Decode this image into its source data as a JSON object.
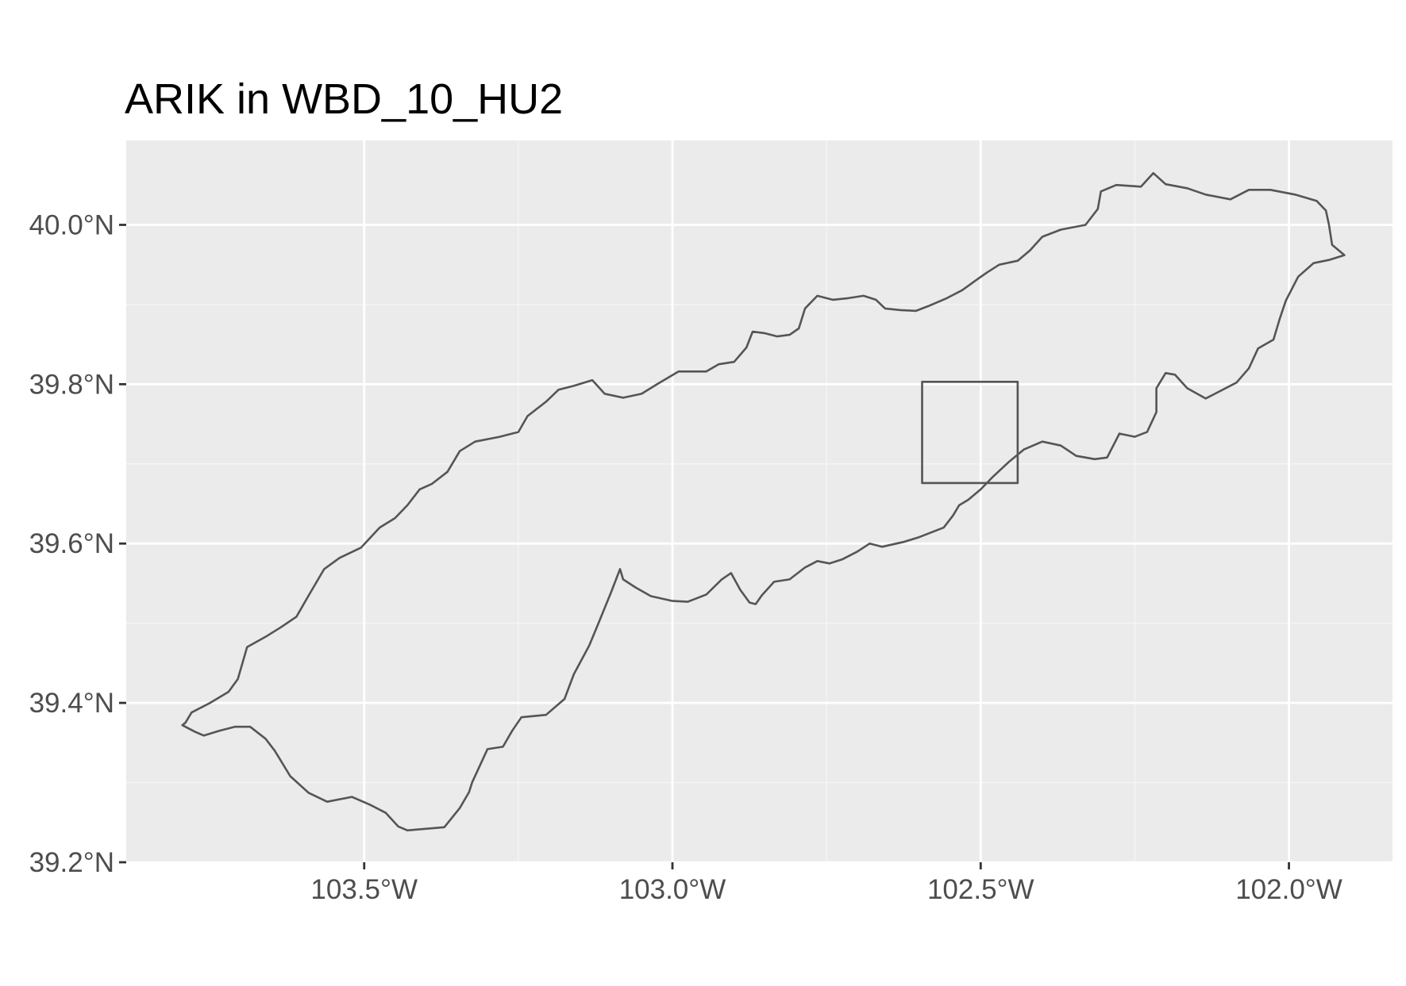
{
  "title": "ARIK in WBD_10_HU2",
  "axes": {
    "x_ticks": [
      {
        "value": -103.5,
        "label": "103.5°W"
      },
      {
        "value": -103.0,
        "label": "103.0°W"
      },
      {
        "value": -102.5,
        "label": "102.5°W"
      },
      {
        "value": -102.0,
        "label": "102.0°W"
      }
    ],
    "y_ticks": [
      {
        "value": 39.2,
        "label": "39.2°N"
      },
      {
        "value": 39.4,
        "label": "39.4°N"
      },
      {
        "value": 39.6,
        "label": "39.6°N"
      },
      {
        "value": 39.8,
        "label": "39.8°N"
      },
      {
        "value": 40.0,
        "label": "40.0°N"
      }
    ],
    "xlim": [
      -103.886,
      -101.832
    ],
    "ylim": [
      39.2,
      40.106
    ]
  },
  "colors": {
    "panel_background": "#ebebeb",
    "watershed_fill": "#e5e5e5",
    "outline": "#555555",
    "grid": "#ffffff"
  },
  "watershed_polygon": [
    [
      -103.79,
      39.375
    ],
    [
      -103.78,
      39.388
    ],
    [
      -103.75,
      39.4
    ],
    [
      -103.72,
      39.414
    ],
    [
      -103.705,
      39.43
    ],
    [
      -103.69,
      39.47
    ],
    [
      -103.66,
      39.483
    ],
    [
      -103.635,
      39.495
    ],
    [
      -103.61,
      39.508
    ],
    [
      -103.59,
      39.535
    ],
    [
      -103.565,
      39.568
    ],
    [
      -103.54,
      39.582
    ],
    [
      -103.505,
      39.595
    ],
    [
      -103.475,
      39.62
    ],
    [
      -103.45,
      39.632
    ],
    [
      -103.43,
      39.648
    ],
    [
      -103.41,
      39.668
    ],
    [
      -103.39,
      39.675
    ],
    [
      -103.365,
      39.69
    ],
    [
      -103.345,
      39.716
    ],
    [
      -103.32,
      39.728
    ],
    [
      -103.28,
      39.734
    ],
    [
      -103.25,
      39.74
    ],
    [
      -103.235,
      39.76
    ],
    [
      -103.205,
      39.778
    ],
    [
      -103.185,
      39.793
    ],
    [
      -103.16,
      39.798
    ],
    [
      -103.13,
      39.805
    ],
    [
      -103.11,
      39.788
    ],
    [
      -103.08,
      39.783
    ],
    [
      -103.05,
      39.788
    ],
    [
      -103.025,
      39.8
    ],
    [
      -102.99,
      39.816
    ],
    [
      -102.945,
      39.816
    ],
    [
      -102.925,
      39.825
    ],
    [
      -102.9,
      39.828
    ],
    [
      -102.88,
      39.846
    ],
    [
      -102.87,
      39.866
    ],
    [
      -102.85,
      39.864
    ],
    [
      -102.83,
      39.86
    ],
    [
      -102.81,
      39.862
    ],
    [
      -102.795,
      39.87
    ],
    [
      -102.785,
      39.895
    ],
    [
      -102.765,
      39.911
    ],
    [
      -102.74,
      39.906
    ],
    [
      -102.715,
      39.908
    ],
    [
      -102.69,
      39.911
    ],
    [
      -102.67,
      39.906
    ],
    [
      -102.655,
      39.895
    ],
    [
      -102.63,
      39.893
    ],
    [
      -102.605,
      39.892
    ],
    [
      -102.585,
      39.898
    ],
    [
      -102.555,
      39.908
    ],
    [
      -102.53,
      39.918
    ],
    [
      -102.505,
      39.932
    ],
    [
      -102.49,
      39.94
    ],
    [
      -102.47,
      39.95
    ],
    [
      -102.44,
      39.955
    ],
    [
      -102.42,
      39.968
    ],
    [
      -102.4,
      39.985
    ],
    [
      -102.37,
      39.994
    ],
    [
      -102.33,
      40.0
    ],
    [
      -102.31,
      40.02
    ],
    [
      -102.305,
      40.042
    ],
    [
      -102.28,
      40.05
    ],
    [
      -102.24,
      40.048
    ],
    [
      -102.22,
      40.065
    ],
    [
      -102.2,
      40.051
    ],
    [
      -102.165,
      40.046
    ],
    [
      -102.135,
      40.038
    ],
    [
      -102.095,
      40.032
    ],
    [
      -102.065,
      40.044
    ],
    [
      -102.03,
      40.044
    ],
    [
      -101.99,
      40.038
    ],
    [
      -101.955,
      40.03
    ],
    [
      -101.94,
      40.018
    ],
    [
      -101.935,
      40.0
    ],
    [
      -101.93,
      39.975
    ],
    [
      -101.91,
      39.962
    ],
    [
      -101.935,
      39.956
    ],
    [
      -101.96,
      39.952
    ],
    [
      -101.985,
      39.935
    ],
    [
      -102.005,
      39.905
    ],
    [
      -102.015,
      39.882
    ],
    [
      -102.025,
      39.856
    ],
    [
      -102.05,
      39.845
    ],
    [
      -102.065,
      39.82
    ],
    [
      -102.085,
      39.802
    ],
    [
      -102.115,
      39.79
    ],
    [
      -102.135,
      39.782
    ],
    [
      -102.165,
      39.795
    ],
    [
      -102.185,
      39.812
    ],
    [
      -102.2,
      39.814
    ],
    [
      -102.215,
      39.795
    ],
    [
      -102.215,
      39.765
    ],
    [
      -102.23,
      39.74
    ],
    [
      -102.25,
      39.734
    ],
    [
      -102.275,
      39.738
    ],
    [
      -102.295,
      39.708
    ],
    [
      -102.315,
      39.706
    ],
    [
      -102.345,
      39.71
    ],
    [
      -102.37,
      39.723
    ],
    [
      -102.4,
      39.728
    ],
    [
      -102.43,
      39.718
    ],
    [
      -102.455,
      39.702
    ],
    [
      -102.48,
      39.684
    ],
    [
      -102.5,
      39.668
    ],
    [
      -102.52,
      39.655
    ],
    [
      -102.535,
      39.648
    ],
    [
      -102.545,
      39.635
    ],
    [
      -102.56,
      39.62
    ],
    [
      -102.6,
      39.608
    ],
    [
      -102.625,
      39.602
    ],
    [
      -102.66,
      39.596
    ],
    [
      -102.68,
      39.6
    ],
    [
      -102.7,
      39.59
    ],
    [
      -102.725,
      39.58
    ],
    [
      -102.745,
      39.575
    ],
    [
      -102.765,
      39.578
    ],
    [
      -102.785,
      39.57
    ],
    [
      -102.81,
      39.555
    ],
    [
      -102.835,
      39.552
    ],
    [
      -102.855,
      39.535
    ],
    [
      -102.865,
      39.524
    ],
    [
      -102.875,
      39.526
    ],
    [
      -102.89,
      39.542
    ],
    [
      -102.905,
      39.563
    ],
    [
      -102.92,
      39.555
    ],
    [
      -102.945,
      39.536
    ],
    [
      -102.975,
      39.527
    ],
    [
      -103.0,
      39.528
    ],
    [
      -103.035,
      39.534
    ],
    [
      -103.06,
      39.545
    ],
    [
      -103.08,
      39.555
    ],
    [
      -103.085,
      39.568
    ],
    [
      -103.1,
      39.538
    ],
    [
      -103.12,
      39.5
    ],
    [
      -103.135,
      39.472
    ],
    [
      -103.16,
      39.436
    ],
    [
      -103.175,
      39.405
    ],
    [
      -103.205,
      39.385
    ],
    [
      -103.245,
      39.382
    ],
    [
      -103.26,
      39.365
    ],
    [
      -103.275,
      39.345
    ],
    [
      -103.3,
      39.342
    ],
    [
      -103.325,
      39.3
    ],
    [
      -103.33,
      39.288
    ],
    [
      -103.345,
      39.268
    ],
    [
      -103.37,
      39.244
    ],
    [
      -103.4,
      39.242
    ],
    [
      -103.43,
      39.24
    ],
    [
      -103.445,
      39.245
    ],
    [
      -103.465,
      39.262
    ],
    [
      -103.49,
      39.272
    ],
    [
      -103.52,
      39.282
    ],
    [
      -103.56,
      39.276
    ],
    [
      -103.59,
      39.287
    ],
    [
      -103.62,
      39.308
    ],
    [
      -103.645,
      39.34
    ],
    [
      -103.66,
      39.355
    ],
    [
      -103.685,
      39.37
    ],
    [
      -103.71,
      39.37
    ],
    [
      -103.735,
      39.365
    ],
    [
      -103.76,
      39.359
    ],
    [
      -103.775,
      39.364
    ],
    [
      -103.795,
      39.372
    ]
  ],
  "site_box": {
    "xmin": -102.595,
    "xmax": -102.44,
    "ymin": 39.676,
    "ymax": 39.803
  }
}
